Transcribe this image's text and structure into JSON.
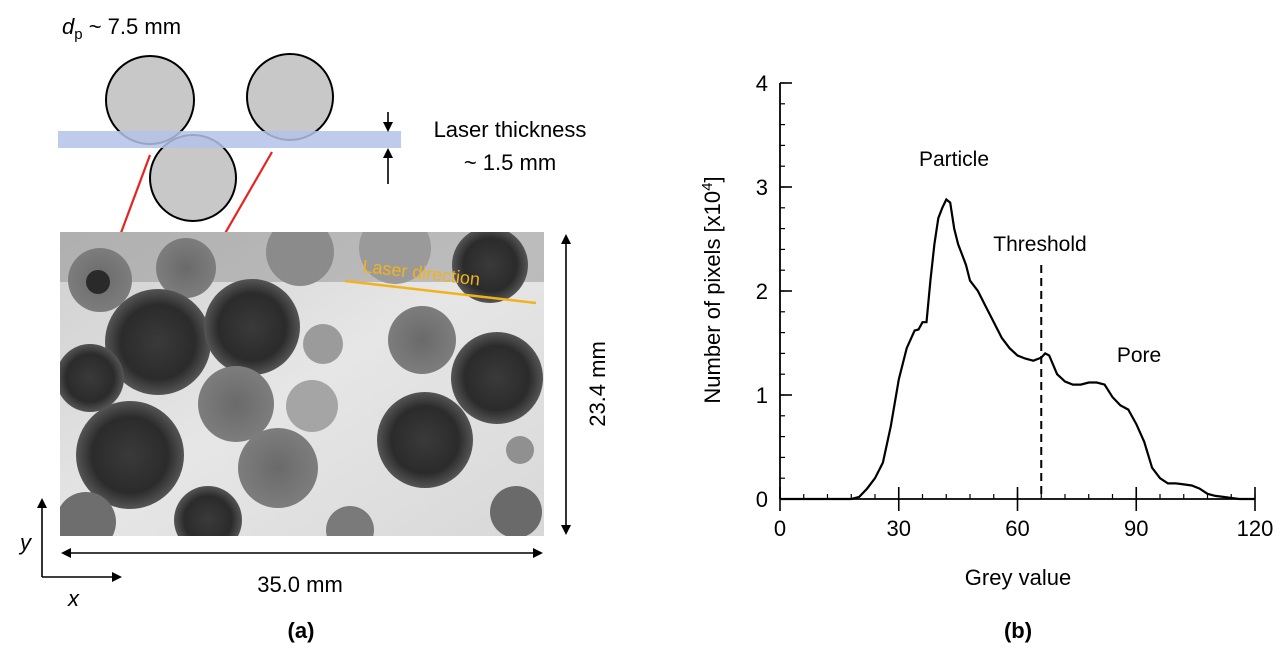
{
  "panel_a": {
    "particle_label_prefix": "d",
    "particle_label_sub": "p",
    "particle_label_rest": " ~ 7.5 mm",
    "laser_thickness_line1": "Laser thickness",
    "laser_thickness_line2": "~ 1.5 mm",
    "laser_direction": "Laser direction",
    "width_label": "35.0 mm",
    "height_label": "23.4 mm",
    "axis_x": "x",
    "axis_y": "y",
    "caption": "(a)",
    "colors": {
      "laser_sheet": "#b3c2e6",
      "arrow": "#e8231e",
      "laser_direction": "#f2b21c",
      "particle": "#c8c8c8"
    }
  },
  "panel_b": {
    "caption": "(b)",
    "annotations": {
      "particle": "Particle",
      "threshold": "Threshold",
      "pore": "Pore"
    }
  },
  "chart_data": {
    "type": "line",
    "xlabel": "Grey value",
    "ylabel_main": "Number of pixels [x10",
    "ylabel_sup": "4",
    "ylabel_end": "]",
    "xlim": [
      0,
      120
    ],
    "ylim": [
      0,
      4
    ],
    "xticks": [
      0,
      30,
      60,
      90,
      120
    ],
    "yticks": [
      0,
      1,
      2,
      3,
      4
    ],
    "threshold": 66,
    "series": [
      {
        "x": [
          0,
          18,
          20,
          22,
          24,
          26,
          28,
          30,
          32,
          34,
          35,
          36,
          37,
          38,
          39,
          40,
          41,
          42,
          43,
          44,
          45,
          46,
          47,
          48,
          50,
          52,
          54,
          56,
          58,
          60,
          62,
          64,
          66,
          67,
          68,
          70,
          72,
          74,
          76,
          78,
          80,
          82,
          84,
          86,
          88,
          90,
          92,
          94,
          96,
          98,
          100,
          102,
          104,
          106,
          108,
          110,
          112,
          114,
          116,
          118,
          120
        ],
        "y": [
          0,
          0,
          0.02,
          0.1,
          0.2,
          0.35,
          0.7,
          1.15,
          1.45,
          1.62,
          1.63,
          1.7,
          1.7,
          2.1,
          2.45,
          2.7,
          2.8,
          2.88,
          2.85,
          2.6,
          2.45,
          2.35,
          2.25,
          2.1,
          2.0,
          1.85,
          1.7,
          1.55,
          1.45,
          1.38,
          1.35,
          1.33,
          1.36,
          1.4,
          1.38,
          1.2,
          1.13,
          1.1,
          1.1,
          1.12,
          1.12,
          1.1,
          0.98,
          0.9,
          0.86,
          0.72,
          0.55,
          0.3,
          0.2,
          0.15,
          0.15,
          0.14,
          0.13,
          0.1,
          0.05,
          0.03,
          0.02,
          0.01,
          0,
          0,
          0
        ]
      }
    ]
  }
}
